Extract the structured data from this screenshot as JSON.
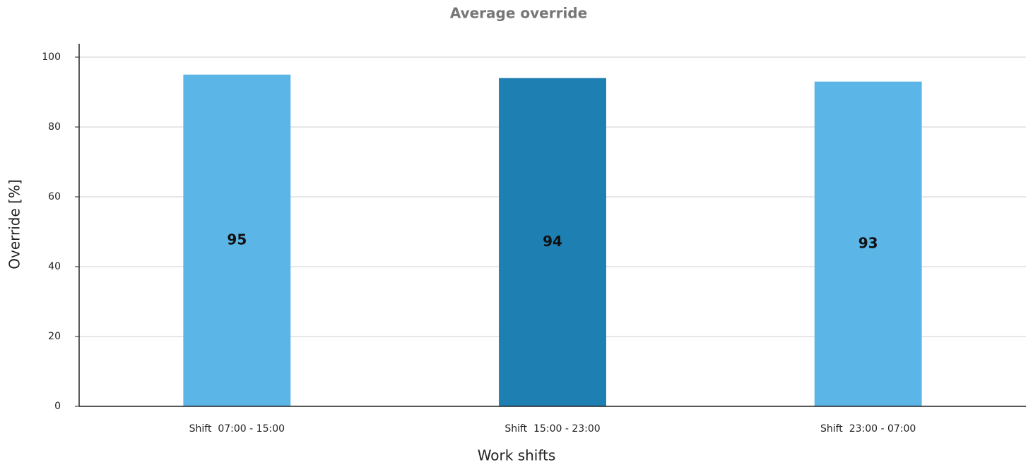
{
  "chart_data": {
    "type": "bar",
    "title": "Average override",
    "x_label": "Work shifts",
    "y_label": "Override [%]",
    "categories": [
      "Shift  07:00 - 15:00",
      "Shift  15:00 - 23:00",
      "Shift  23:00 - 07:00"
    ],
    "values": [
      95,
      94,
      93
    ],
    "colors": [
      "#5bb5e7",
      "#1e7fb2",
      "#5bb5e7"
    ],
    "ylim": [
      0,
      100
    ],
    "yticks": [
      0,
      20,
      40,
      60,
      80,
      100
    ],
    "grid": true
  }
}
